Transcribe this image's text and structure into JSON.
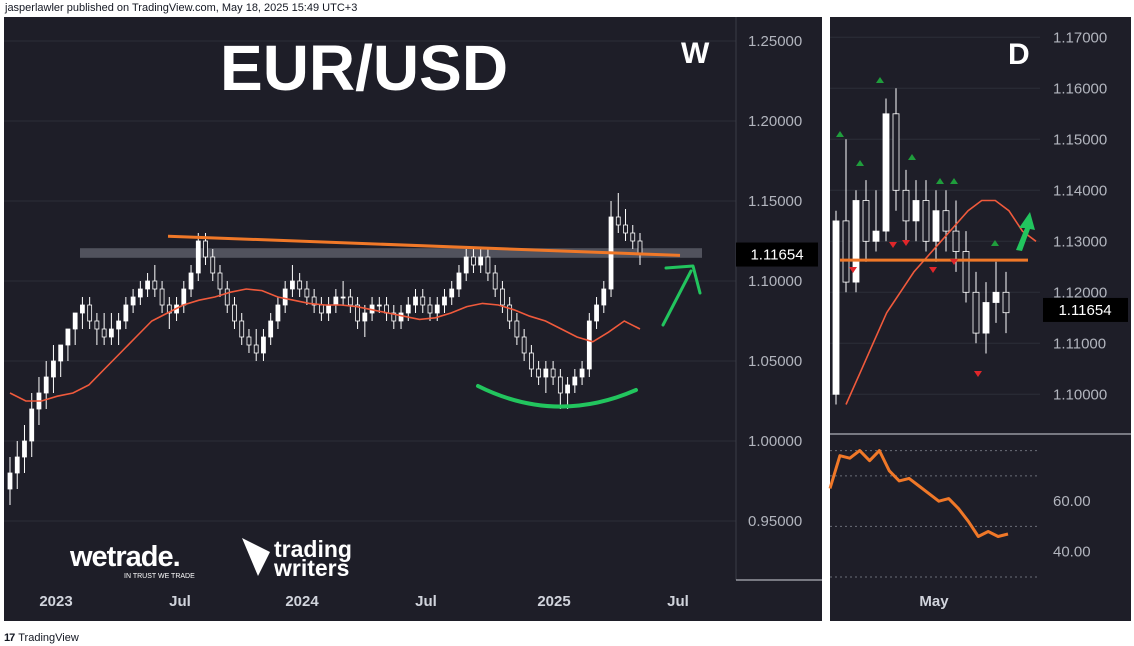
{
  "publisher_line": "jasperlawler published on TradingView.com, May 18, 2025 15:49 UTC+3",
  "footer": {
    "logo_mark": "17",
    "label": "TradingView"
  },
  "branding": {
    "wetrade_name": "wetrade.",
    "wetrade_tagline": "IN TRUST WE TRADE",
    "tw_line1": "trading",
    "tw_line2": "writers"
  },
  "colors": {
    "background": "#1e1e28",
    "candle_up": "#ffffff",
    "candle_down": "#ffffff",
    "moving_average": "#f05a3c",
    "trendline": "#f07828",
    "support_zone": "#5a5c66",
    "arrow": "#22c55e",
    "curve": "#22c55e",
    "price_tag_bg": "#000000",
    "rsi_line": "#f07828",
    "marker_up": "#1f9d3c",
    "marker_down": "#e0262a"
  },
  "chart_data": [
    {
      "type": "candlestick",
      "timeframe_label": "W",
      "title": "EUR/USD",
      "x_tick_labels": [
        "2023",
        "Jul",
        "2024",
        "Jul",
        "2025",
        "Jul"
      ],
      "y_tick_labels": [
        "1.25000",
        "1.20000",
        "1.15000",
        "1.10000",
        "1.05000",
        "1.00000",
        "0.95000"
      ],
      "ylim": [
        0.91,
        1.26
      ],
      "last_price_label": "1.11654",
      "last_price": 1.11654,
      "ohlc": [
        [
          0.97,
          0.99,
          0.96,
          0.98
        ],
        [
          0.98,
          1.0,
          0.97,
          0.99
        ],
        [
          0.99,
          1.01,
          0.98,
          1.0
        ],
        [
          1.0,
          1.03,
          0.99,
          1.02
        ],
        [
          1.02,
          1.04,
          1.01,
          1.03
        ],
        [
          1.03,
          1.05,
          1.02,
          1.04
        ],
        [
          1.04,
          1.06,
          1.03,
          1.05
        ],
        [
          1.05,
          1.06,
          1.04,
          1.06
        ],
        [
          1.06,
          1.07,
          1.05,
          1.07
        ],
        [
          1.07,
          1.08,
          1.06,
          1.08
        ],
        [
          1.08,
          1.09,
          1.07,
          1.085
        ],
        [
          1.085,
          1.09,
          1.07,
          1.075
        ],
        [
          1.075,
          1.08,
          1.06,
          1.07
        ],
        [
          1.07,
          1.08,
          1.06,
          1.065
        ],
        [
          1.065,
          1.08,
          1.06,
          1.07
        ],
        [
          1.07,
          1.08,
          1.06,
          1.075
        ],
        [
          1.075,
          1.09,
          1.07,
          1.085
        ],
        [
          1.085,
          1.095,
          1.08,
          1.09
        ],
        [
          1.09,
          1.1,
          1.085,
          1.095
        ],
        [
          1.095,
          1.105,
          1.09,
          1.1
        ],
        [
          1.1,
          1.11,
          1.09,
          1.095
        ],
        [
          1.095,
          1.1,
          1.08,
          1.085
        ],
        [
          1.085,
          1.09,
          1.07,
          1.08
        ],
        [
          1.08,
          1.09,
          1.075,
          1.085
        ],
        [
          1.085,
          1.1,
          1.08,
          1.095
        ],
        [
          1.095,
          1.11,
          1.09,
          1.105
        ],
        [
          1.105,
          1.13,
          1.1,
          1.125
        ],
        [
          1.125,
          1.13,
          1.11,
          1.115
        ],
        [
          1.115,
          1.12,
          1.1,
          1.105
        ],
        [
          1.105,
          1.11,
          1.09,
          1.095
        ],
        [
          1.095,
          1.1,
          1.08,
          1.085
        ],
        [
          1.085,
          1.09,
          1.07,
          1.075
        ],
        [
          1.075,
          1.08,
          1.06,
          1.065
        ],
        [
          1.065,
          1.07,
          1.055,
          1.06
        ],
        [
          1.06,
          1.07,
          1.05,
          1.055
        ],
        [
          1.055,
          1.07,
          1.05,
          1.065
        ],
        [
          1.065,
          1.08,
          1.06,
          1.075
        ],
        [
          1.075,
          1.09,
          1.07,
          1.085
        ],
        [
          1.085,
          1.1,
          1.08,
          1.095
        ],
        [
          1.095,
          1.11,
          1.09,
          1.1
        ],
        [
          1.1,
          1.105,
          1.09,
          1.095
        ],
        [
          1.095,
          1.1,
          1.085,
          1.09
        ],
        [
          1.09,
          1.095,
          1.08,
          1.085
        ],
        [
          1.085,
          1.09,
          1.075,
          1.08
        ],
        [
          1.08,
          1.09,
          1.075,
          1.085
        ],
        [
          1.085,
          1.095,
          1.08,
          1.09
        ],
        [
          1.09,
          1.1,
          1.085,
          1.09
        ],
        [
          1.09,
          1.095,
          1.08,
          1.085
        ],
        [
          1.085,
          1.09,
          1.07,
          1.075
        ],
        [
          1.075,
          1.085,
          1.065,
          1.08
        ],
        [
          1.08,
          1.09,
          1.075,
          1.085
        ],
        [
          1.085,
          1.09,
          1.08,
          1.085
        ],
        [
          1.085,
          1.09,
          1.075,
          1.08
        ],
        [
          1.08,
          1.085,
          1.07,
          1.075
        ],
        [
          1.075,
          1.085,
          1.07,
          1.08
        ],
        [
          1.08,
          1.09,
          1.075,
          1.085
        ],
        [
          1.085,
          1.095,
          1.08,
          1.09
        ],
        [
          1.09,
          1.095,
          1.08,
          1.085
        ],
        [
          1.085,
          1.09,
          1.075,
          1.08
        ],
        [
          1.08,
          1.09,
          1.075,
          1.085
        ],
        [
          1.085,
          1.095,
          1.08,
          1.09
        ],
        [
          1.09,
          1.1,
          1.085,
          1.095
        ],
        [
          1.095,
          1.11,
          1.09,
          1.105
        ],
        [
          1.105,
          1.12,
          1.1,
          1.115
        ],
        [
          1.115,
          1.12,
          1.105,
          1.11
        ],
        [
          1.11,
          1.12,
          1.105,
          1.115
        ],
        [
          1.115,
          1.12,
          1.1,
          1.105
        ],
        [
          1.105,
          1.11,
          1.09,
          1.095
        ],
        [
          1.095,
          1.1,
          1.08,
          1.085
        ],
        [
          1.085,
          1.09,
          1.07,
          1.075
        ],
        [
          1.075,
          1.08,
          1.06,
          1.065
        ],
        [
          1.065,
          1.07,
          1.05,
          1.055
        ],
        [
          1.055,
          1.06,
          1.04,
          1.045
        ],
        [
          1.045,
          1.05,
          1.035,
          1.04
        ],
        [
          1.04,
          1.05,
          1.03,
          1.045
        ],
        [
          1.045,
          1.05,
          1.035,
          1.04
        ],
        [
          1.04,
          1.045,
          1.02,
          1.03
        ],
        [
          1.03,
          1.04,
          1.02,
          1.035
        ],
        [
          1.035,
          1.045,
          1.03,
          1.04
        ],
        [
          1.04,
          1.05,
          1.035,
          1.045
        ],
        [
          1.045,
          1.08,
          1.04,
          1.075
        ],
        [
          1.075,
          1.09,
          1.07,
          1.085
        ],
        [
          1.085,
          1.1,
          1.08,
          1.095
        ],
        [
          1.095,
          1.15,
          1.09,
          1.14
        ],
        [
          1.14,
          1.155,
          1.13,
          1.135
        ],
        [
          1.135,
          1.145,
          1.125,
          1.13
        ],
        [
          1.13,
          1.135,
          1.12,
          1.125
        ],
        [
          1.125,
          1.13,
          1.11,
          1.11654
        ]
      ],
      "moving_average": [
        1.03,
        1.025,
        1.025,
        1.028,
        1.03,
        1.035,
        1.045,
        1.055,
        1.065,
        1.075,
        1.08,
        1.085,
        1.088,
        1.09,
        1.093,
        1.095,
        1.094,
        1.09,
        1.088,
        1.086,
        1.085,
        1.085,
        1.084,
        1.082,
        1.08,
        1.078,
        1.076,
        1.077,
        1.08,
        1.084,
        1.086,
        1.085,
        1.082,
        1.078,
        1.075,
        1.07,
        1.065,
        1.062,
        1.068,
        1.075,
        1.07
      ],
      "resistance_zone": [
        1.1145,
        1.1205
      ],
      "trendline": {
        "from": 1.128,
        "to": 1.116
      }
    },
    {
      "type": "candlestick",
      "timeframe_label": "D",
      "x_tick_labels": [
        "May"
      ],
      "y_tick_labels": [
        "1.17000",
        "1.16000",
        "1.15000",
        "1.14000",
        "1.13000",
        "1.12000",
        "1.11000",
        "1.10000"
      ],
      "ylim": [
        1.093,
        1.173
      ],
      "last_price_label": "1.11654",
      "last_price": 1.11654,
      "horizontal_line": 1.1263,
      "rsi_tick_labels": [
        "60.00",
        "40.00"
      ],
      "rsi_ylim": [
        28,
        85
      ],
      "rsi_dashed_levels": [
        80,
        70,
        50,
        30
      ],
      "rsi": [
        65,
        78,
        77,
        80,
        76,
        80,
        72,
        68,
        69,
        66,
        63,
        60,
        61,
        57,
        52,
        46,
        48,
        46,
        47
      ]
    }
  ]
}
